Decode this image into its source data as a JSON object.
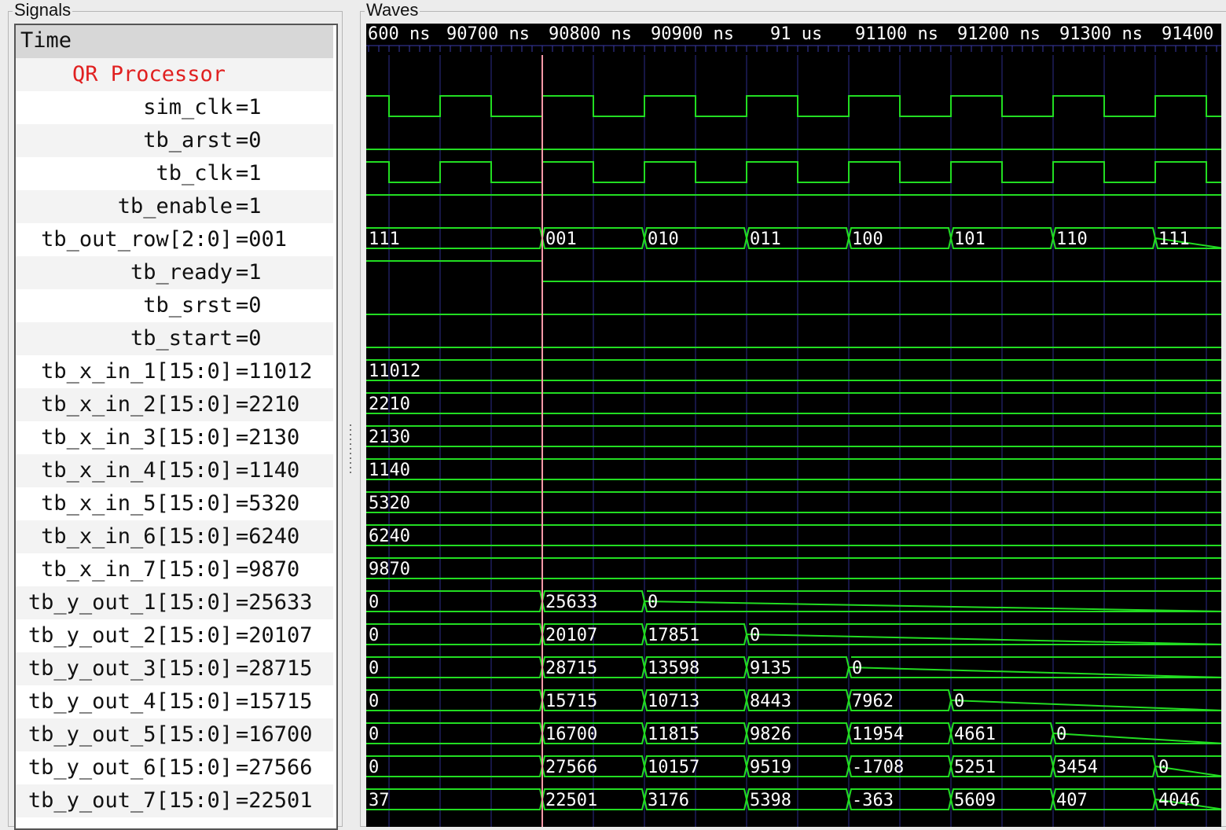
{
  "panels": {
    "signals_title": "Signals",
    "waves_title": "Waves"
  },
  "time_header": "Time",
  "time_ruler": [
    "600 ns",
    "90700 ns",
    "90800 ns",
    "90900 ns",
    "91 us",
    "91100 ns",
    "91200 ns",
    "91300 ns",
    "91400"
  ],
  "group": "QR Processor",
  "signals": [
    {
      "name": "sim_clk",
      "value": "=1",
      "kind": "clock"
    },
    {
      "name": "tb_arst",
      "value": "=0",
      "kind": "low"
    },
    {
      "name": "tb_clk",
      "value": "=1",
      "kind": "clock"
    },
    {
      "name": "tb_enable",
      "value": "=1",
      "kind": "high"
    },
    {
      "name": "tb_out_row[2:0]",
      "value": "=001",
      "kind": "bus",
      "segments": [
        "111",
        "001",
        "010",
        "011",
        "100",
        "101",
        "110",
        "111"
      ]
    },
    {
      "name": "tb_ready",
      "value": "=1",
      "kind": "ready"
    },
    {
      "name": "tb_srst",
      "value": "=0",
      "kind": "low"
    },
    {
      "name": "tb_start",
      "value": "=0",
      "kind": "low"
    },
    {
      "name": "tb_x_in_1[15:0]",
      "value": "=11012",
      "kind": "bus",
      "segments": [
        "11012"
      ]
    },
    {
      "name": "tb_x_in_2[15:0]",
      "value": "=2210",
      "kind": "bus",
      "segments": [
        "2210"
      ]
    },
    {
      "name": "tb_x_in_3[15:0]",
      "value": "=2130",
      "kind": "bus",
      "segments": [
        "2130"
      ]
    },
    {
      "name": "tb_x_in_4[15:0]",
      "value": "=1140",
      "kind": "bus",
      "segments": [
        "1140"
      ]
    },
    {
      "name": "tb_x_in_5[15:0]",
      "value": "=5320",
      "kind": "bus",
      "segments": [
        "5320"
      ]
    },
    {
      "name": "tb_x_in_6[15:0]",
      "value": "=6240",
      "kind": "bus",
      "segments": [
        "6240"
      ]
    },
    {
      "name": "tb_x_in_7[15:0]",
      "value": "=9870",
      "kind": "bus",
      "segments": [
        "9870"
      ]
    },
    {
      "name": "tb_y_out_1[15:0]",
      "value": "=25633",
      "kind": "bus",
      "segments": [
        "0",
        "25633",
        "0"
      ]
    },
    {
      "name": "tb_y_out_2[15:0]",
      "value": "=20107",
      "kind": "bus",
      "segments": [
        "0",
        "20107",
        "17851",
        "0"
      ]
    },
    {
      "name": "tb_y_out_3[15:0]",
      "value": "=28715",
      "kind": "bus",
      "segments": [
        "0",
        "28715",
        "13598",
        "9135",
        "0"
      ]
    },
    {
      "name": "tb_y_out_4[15:0]",
      "value": "=15715",
      "kind": "bus",
      "segments": [
        "0",
        "15715",
        "10713",
        "8443",
        "7962",
        "0"
      ]
    },
    {
      "name": "tb_y_out_5[15:0]",
      "value": "=16700",
      "kind": "bus",
      "segments": [
        "0",
        "16700",
        "11815",
        "9826",
        "11954",
        "4661",
        "0"
      ]
    },
    {
      "name": "tb_y_out_6[15:0]",
      "value": "=27566",
      "kind": "bus",
      "segments": [
        "0",
        "27566",
        "10157",
        "9519",
        "-1708",
        "5251",
        "3454",
        "0"
      ]
    },
    {
      "name": "tb_y_out_7[15:0]",
      "value": "=22501",
      "kind": "bus",
      "segments": [
        "37",
        "22501",
        "3176",
        "5398",
        "-363",
        "5609",
        "407",
        "4046"
      ]
    }
  ],
  "colors": {
    "wave": "#22dd22",
    "grid": "#2c2c8a",
    "cursor": "#ff9aa8",
    "group_label": "#e02020",
    "wave_bg": "#000000"
  }
}
